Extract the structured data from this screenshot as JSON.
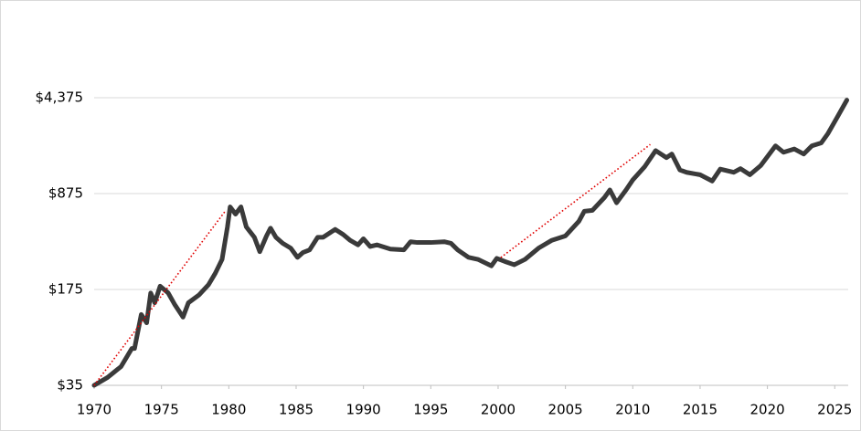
{
  "chart_data": {
    "type": "line",
    "color": "#3a3a3a",
    "log_y": true,
    "grid": true,
    "x": [
      1970.0,
      1971.0,
      1972.0,
      1972.8,
      1973.0,
      1973.5,
      1973.9,
      1974.2,
      1974.5,
      1974.9,
      1975.5,
      1976.0,
      1976.6,
      1977.0,
      1977.8,
      1978.5,
      1979.0,
      1979.5,
      1979.9,
      1980.1,
      1980.5,
      1980.9,
      1981.3,
      1981.9,
      1982.3,
      1982.8,
      1983.1,
      1983.5,
      1984.0,
      1984.6,
      1985.1,
      1985.5,
      1986.0,
      1986.6,
      1987.0,
      1987.9,
      1988.5,
      1989.0,
      1989.6,
      1990.0,
      1990.5,
      1991.0,
      1992.0,
      1993.0,
      1993.5,
      1994.0,
      1995.0,
      1996.0,
      1996.5,
      1997.0,
      1997.8,
      1998.5,
      1999.5,
      1999.9,
      2000.5,
      2001.2,
      2002.0,
      2003.0,
      2004.0,
      2005.0,
      2006.0,
      2006.4,
      2007.0,
      2007.9,
      2008.3,
      2008.8,
      2009.5,
      2010.0,
      2010.9,
      2011.7,
      2012.5,
      2012.9,
      2013.5,
      2014.0,
      2015.0,
      2015.9,
      2016.5,
      2017.5,
      2018.0,
      2018.7,
      2019.5,
      2020.6,
      2021.2,
      2022.0,
      2022.7,
      2023.3,
      2024.0,
      2024.5,
      2025.3,
      2025.9
    ],
    "values": [
      35,
      40,
      48,
      65,
      65,
      115,
      100,
      165,
      140,
      185,
      165,
      135,
      110,
      140,
      160,
      190,
      230,
      290,
      500,
      700,
      620,
      700,
      500,
      420,
      330,
      430,
      490,
      420,
      380,
      350,
      300,
      325,
      340,
      420,
      420,
      480,
      440,
      400,
      370,
      410,
      360,
      370,
      345,
      340,
      390,
      385,
      385,
      390,
      380,
      340,
      300,
      290,
      260,
      295,
      280,
      265,
      290,
      350,
      400,
      430,
      550,
      650,
      660,
      820,
      930,
      750,
      930,
      1100,
      1380,
      1800,
      1600,
      1700,
      1300,
      1250,
      1200,
      1080,
      1320,
      1250,
      1330,
      1200,
      1400,
      1950,
      1750,
      1850,
      1700,
      1950,
      2050,
      2400,
      3300,
      4200
    ],
    "trend_lines": [
      {
        "color": "#e00000",
        "x": [
          1970.0,
          1979.7
        ],
        "values": [
          35,
          645
        ]
      },
      {
        "color": "#e00000",
        "x": [
          2000.2,
          2011.3
        ],
        "values": [
          299,
          1996
        ]
      }
    ],
    "xlim": [
      1970,
      2026
    ],
    "xticks": [
      1970,
      1975,
      1980,
      1985,
      1990,
      1995,
      2000,
      2005,
      2010,
      2015,
      2020,
      2025
    ],
    "ylim": [
      35,
      21875
    ],
    "yticks": [
      {
        "value": 35,
        "label": "$35"
      },
      {
        "value": 175,
        "label": "$175"
      },
      {
        "value": 875,
        "label": "$875"
      },
      {
        "value": 4375,
        "label": "$4,375"
      }
    ]
  }
}
